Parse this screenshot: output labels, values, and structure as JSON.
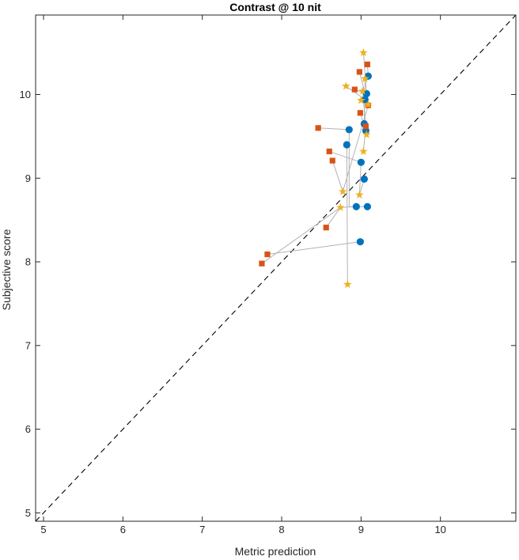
{
  "chart_data": {
    "type": "scatter",
    "title": "Contrast @ 10 nit",
    "xlabel": "Metric prediction",
    "ylabel": "Subjective score",
    "xlim": [
      4.9,
      10.95
    ],
    "ylim": [
      4.9,
      10.95
    ],
    "xticks": [
      5,
      6,
      7,
      8,
      9,
      10
    ],
    "yticks": [
      5,
      6,
      7,
      8,
      9,
      10
    ],
    "grid": false,
    "legend": "none",
    "reference_line": {
      "style": "dashed",
      "color": "#000000",
      "from": [
        4.9,
        4.9
      ],
      "to": [
        10.95,
        10.95
      ]
    },
    "connector_color": "#b3b3b3",
    "series": [
      {
        "marker": "circle",
        "color": "#0072BD",
        "points": [
          {
            "x": 9.09,
            "y": 10.22
          },
          {
            "x": 9.07,
            "y": 10.01
          },
          {
            "x": 9.05,
            "y": 9.94
          },
          {
            "x": 8.85,
            "y": 9.58
          },
          {
            "x": 9.04,
            "y": 9.65
          },
          {
            "x": 9.06,
            "y": 9.57
          },
          {
            "x": 8.82,
            "y": 9.4
          },
          {
            "x": 9.0,
            "y": 9.19
          },
          {
            "x": 9.04,
            "y": 8.99
          },
          {
            "x": 8.94,
            "y": 8.66
          },
          {
            "x": 9.08,
            "y": 8.66
          },
          {
            "x": 8.99,
            "y": 8.24
          }
        ]
      },
      {
        "marker": "square",
        "color": "#D95319",
        "points": [
          {
            "x": 9.08,
            "y": 10.36
          },
          {
            "x": 8.98,
            "y": 10.27
          },
          {
            "x": 8.92,
            "y": 10.06
          },
          {
            "x": 9.09,
            "y": 9.87
          },
          {
            "x": 8.99,
            "y": 9.78
          },
          {
            "x": 9.06,
            "y": 9.62
          },
          {
            "x": 8.46,
            "y": 9.6
          },
          {
            "x": 8.6,
            "y": 9.32
          },
          {
            "x": 8.64,
            "y": 9.21
          },
          {
            "x": 8.56,
            "y": 8.41
          },
          {
            "x": 7.82,
            "y": 8.09
          },
          {
            "x": 7.75,
            "y": 7.98
          }
        ]
      },
      {
        "marker": "star",
        "color": "#EDB120",
        "points": [
          {
            "x": 9.03,
            "y": 10.5
          },
          {
            "x": 9.05,
            "y": 10.19
          },
          {
            "x": 8.81,
            "y": 10.1
          },
          {
            "x": 9.02,
            "y": 10.04
          },
          {
            "x": 9.0,
            "y": 9.93
          },
          {
            "x": 9.09,
            "y": 9.88
          },
          {
            "x": 9.07,
            "y": 9.52
          },
          {
            "x": 9.03,
            "y": 9.32
          },
          {
            "x": 8.77,
            "y": 8.84
          },
          {
            "x": 8.98,
            "y": 8.8
          },
          {
            "x": 8.74,
            "y": 8.65
          },
          {
            "x": 8.83,
            "y": 7.73
          }
        ]
      }
    ],
    "connections": [
      [
        {
          "x": 8.46,
          "y": 9.6
        },
        {
          "x": 8.85,
          "y": 9.58
        }
      ],
      [
        {
          "x": 8.85,
          "y": 9.58
        },
        {
          "x": 8.85,
          "y": 8.66
        }
      ],
      [
        {
          "x": 8.85,
          "y": 8.66
        },
        {
          "x": 9.08,
          "y": 8.66
        }
      ],
      [
        {
          "x": 8.81,
          "y": 10.1
        },
        {
          "x": 9.05,
          "y": 9.94
        }
      ],
      [
        {
          "x": 8.92,
          "y": 10.06
        },
        {
          "x": 9.07,
          "y": 10.01
        }
      ],
      [
        {
          "x": 8.98,
          "y": 10.27
        },
        {
          "x": 9.09,
          "y": 9.87
        }
      ],
      [
        {
          "x": 9.08,
          "y": 10.36
        },
        {
          "x": 9.09,
          "y": 10.22
        }
      ],
      [
        {
          "x": 9.03,
          "y": 10.5
        },
        {
          "x": 9.07,
          "y": 10.01
        }
      ],
      [
        {
          "x": 9.05,
          "y": 10.19
        },
        {
          "x": 9.04,
          "y": 9.65
        }
      ],
      [
        {
          "x": 8.99,
          "y": 9.78
        },
        {
          "x": 9.06,
          "y": 9.57
        }
      ],
      [
        {
          "x": 9.02,
          "y": 10.04
        },
        {
          "x": 9.07,
          "y": 9.52
        }
      ],
      [
        {
          "x": 8.82,
          "y": 9.4
        },
        {
          "x": 8.83,
          "y": 7.73
        }
      ],
      [
        {
          "x": 8.6,
          "y": 9.32
        },
        {
          "x": 9.0,
          "y": 9.19
        }
      ],
      [
        {
          "x": 8.64,
          "y": 9.21
        },
        {
          "x": 8.77,
          "y": 8.84
        }
      ],
      [
        {
          "x": 8.77,
          "y": 8.84
        },
        {
          "x": 9.09,
          "y": 9.87
        }
      ],
      [
        {
          "x": 9.04,
          "y": 8.99
        },
        {
          "x": 8.98,
          "y": 8.8
        }
      ],
      [
        {
          "x": 9.0,
          "y": 9.19
        },
        {
          "x": 8.98,
          "y": 8.8
        }
      ],
      [
        {
          "x": 8.74,
          "y": 8.65
        },
        {
          "x": 8.94,
          "y": 8.66
        }
      ],
      [
        {
          "x": 8.56,
          "y": 8.41
        },
        {
          "x": 8.74,
          "y": 8.65
        }
      ],
      [
        {
          "x": 7.82,
          "y": 8.09
        },
        {
          "x": 8.99,
          "y": 8.24
        }
      ],
      [
        {
          "x": 7.75,
          "y": 7.98
        },
        {
          "x": 8.74,
          "y": 8.65
        }
      ],
      [
        {
          "x": 9.06,
          "y": 9.62
        },
        {
          "x": 9.03,
          "y": 9.32
        }
      ]
    ]
  }
}
